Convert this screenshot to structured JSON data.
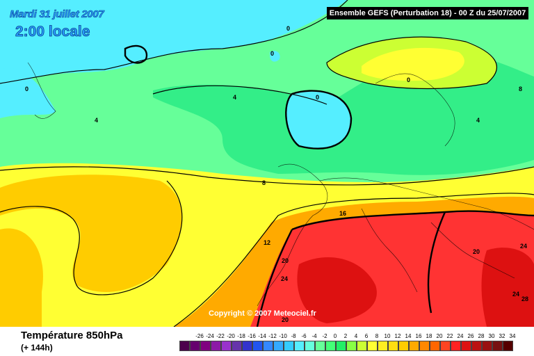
{
  "header": {
    "date": "Mardi 31 juillet 2007",
    "time": "2:00 locale",
    "run": "Ensemble GEFS (Perturbation 18)  -  00 Z du 25/07/2007"
  },
  "map": {
    "copyright": "Copyright © 2007 Meteociel.fr",
    "contour_labels": [
      "0",
      "0",
      "0",
      "0",
      "0",
      "4",
      "4",
      "4",
      "8",
      "8",
      "12",
      "16",
      "20",
      "20",
      "20",
      "24",
      "24",
      "24",
      "28"
    ],
    "colors": {
      "cold_cyan": "#55eeff",
      "green": "#66ff99",
      "green_mid": "#33ee88",
      "yellow": "#ffff33",
      "orange": "#ffcc00",
      "red": "#ff3333",
      "dark_red": "#cc1111"
    }
  },
  "legend": {
    "parameter": "Température 850hPa",
    "lead_time": "(+ 144h)",
    "scale_values": [
      "-26",
      "-24",
      "-22",
      "-20",
      "-18",
      "-16",
      "-14",
      "-12",
      "-10",
      "-8",
      "-6",
      "-4",
      "-2",
      "0",
      "2",
      "4",
      "6",
      "8",
      "10",
      "12",
      "14",
      "16",
      "18",
      "20",
      "22",
      "24",
      "26",
      "28",
      "30",
      "32",
      "34"
    ],
    "scale_colors": [
      "#4d004d",
      "#66006e",
      "#800080",
      "#8c1aa6",
      "#9933cc",
      "#6633aa",
      "#3333cc",
      "#2255ee",
      "#3388ff",
      "#33aaff",
      "#33ccff",
      "#55eeff",
      "#66ffdd",
      "#66ff99",
      "#44ff77",
      "#22ee66",
      "#88ff44",
      "#ccff33",
      "#ffff33",
      "#ffee22",
      "#ffdd11",
      "#ffcc00",
      "#ffaa00",
      "#ff8800",
      "#ff6600",
      "#ff4422",
      "#ff2222",
      "#dd1111",
      "#bb1111",
      "#991111",
      "#771111",
      "#550000"
    ]
  }
}
